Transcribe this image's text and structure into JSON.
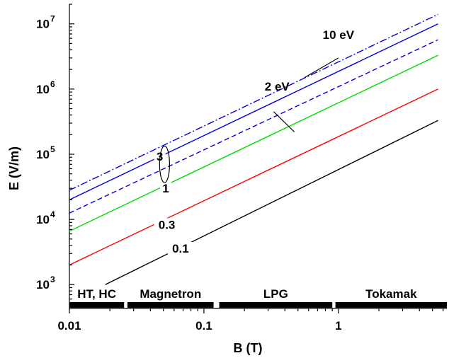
{
  "chart_data": {
    "type": "line",
    "xlabel": "B (T)",
    "ylabel": "E (V/m)",
    "x_scale": "log",
    "y_scale": "log",
    "xlim": [
      0.01,
      6.4
    ],
    "ylim": [
      430,
      20000000
    ],
    "x_ticks": [
      {
        "value": 0.01,
        "label": "0.01"
      },
      {
        "value": 0.1,
        "label": "0.1"
      },
      {
        "value": 1,
        "label": "1"
      }
    ],
    "y_ticks": [
      {
        "value": 1000,
        "base": "10",
        "exp": "3"
      },
      {
        "value": 10000,
        "base": "10",
        "exp": "4"
      },
      {
        "value": 100000,
        "base": "10",
        "exp": "5"
      },
      {
        "value": 1000000,
        "base": "10",
        "exp": "6"
      },
      {
        "value": 10000000,
        "base": "10",
        "exp": "7"
      }
    ],
    "series": [
      {
        "name": "0.1",
        "color": "#000000",
        "dash": "solid",
        "points": [
          [
            0.0185,
            1000
          ],
          [
            5.5,
            330000
          ]
        ],
        "label_at": [
          0.067,
          3100
        ]
      },
      {
        "name": "0.3",
        "color": "#ff0000",
        "dash": "solid",
        "points": [
          [
            0.01,
            2000
          ],
          [
            5.5,
            1000000
          ]
        ],
        "label_at": [
          0.053,
          7200
        ]
      },
      {
        "name": "1",
        "color": "#00dd00",
        "dash": "solid",
        "points": [
          [
            0.01,
            6600
          ],
          [
            5.5,
            3300000
          ]
        ],
        "label_at": [
          0.052,
          26000
        ]
      },
      {
        "name": "3",
        "color": "#0000dd",
        "dash": "solid",
        "points": [
          [
            0.01,
            20000
          ],
          [
            5.5,
            10000000
          ]
        ],
        "label_at": [
          0.047,
          80000
        ]
      },
      {
        "name": "",
        "color": "#0000dd",
        "dash": "dashed",
        "points": [
          [
            0.01,
            12500
          ],
          [
            5.5,
            5700000
          ]
        ]
      },
      {
        "name": "",
        "color": "#0000dd",
        "dash": "dashdot",
        "points": [
          [
            0.01,
            28000
          ],
          [
            5.5,
            14000000
          ]
        ]
      }
    ],
    "annotations": [
      {
        "text": "10 eV",
        "text_at": [
          1.0,
          5900000
        ],
        "arrow_from": [
          1.0,
          3000000
        ],
        "arrow_to": [
          0.56,
          1500000
        ]
      },
      {
        "text": "2 eV",
        "text_at": [
          0.35,
          950000
        ],
        "arrow_from": [
          0.33,
          450000
        ],
        "arrow_to": [
          0.47,
          220000
        ]
      }
    ],
    "ellipse": {
      "center": [
        0.051,
        70000
      ],
      "x_half_decades": 0.037,
      "y_half_decades": 0.28
    },
    "regions": [
      {
        "label": "HT, HC",
        "from": 0.01,
        "to": 0.0255
      },
      {
        "label": "Magnetron",
        "from": 0.027,
        "to": 0.118
      },
      {
        "label": "LPG",
        "from": 0.13,
        "to": 0.9
      },
      {
        "label": "Tokamak",
        "from": 0.95,
        "to": 6.4
      }
    ],
    "grid": false,
    "legend": "none"
  }
}
